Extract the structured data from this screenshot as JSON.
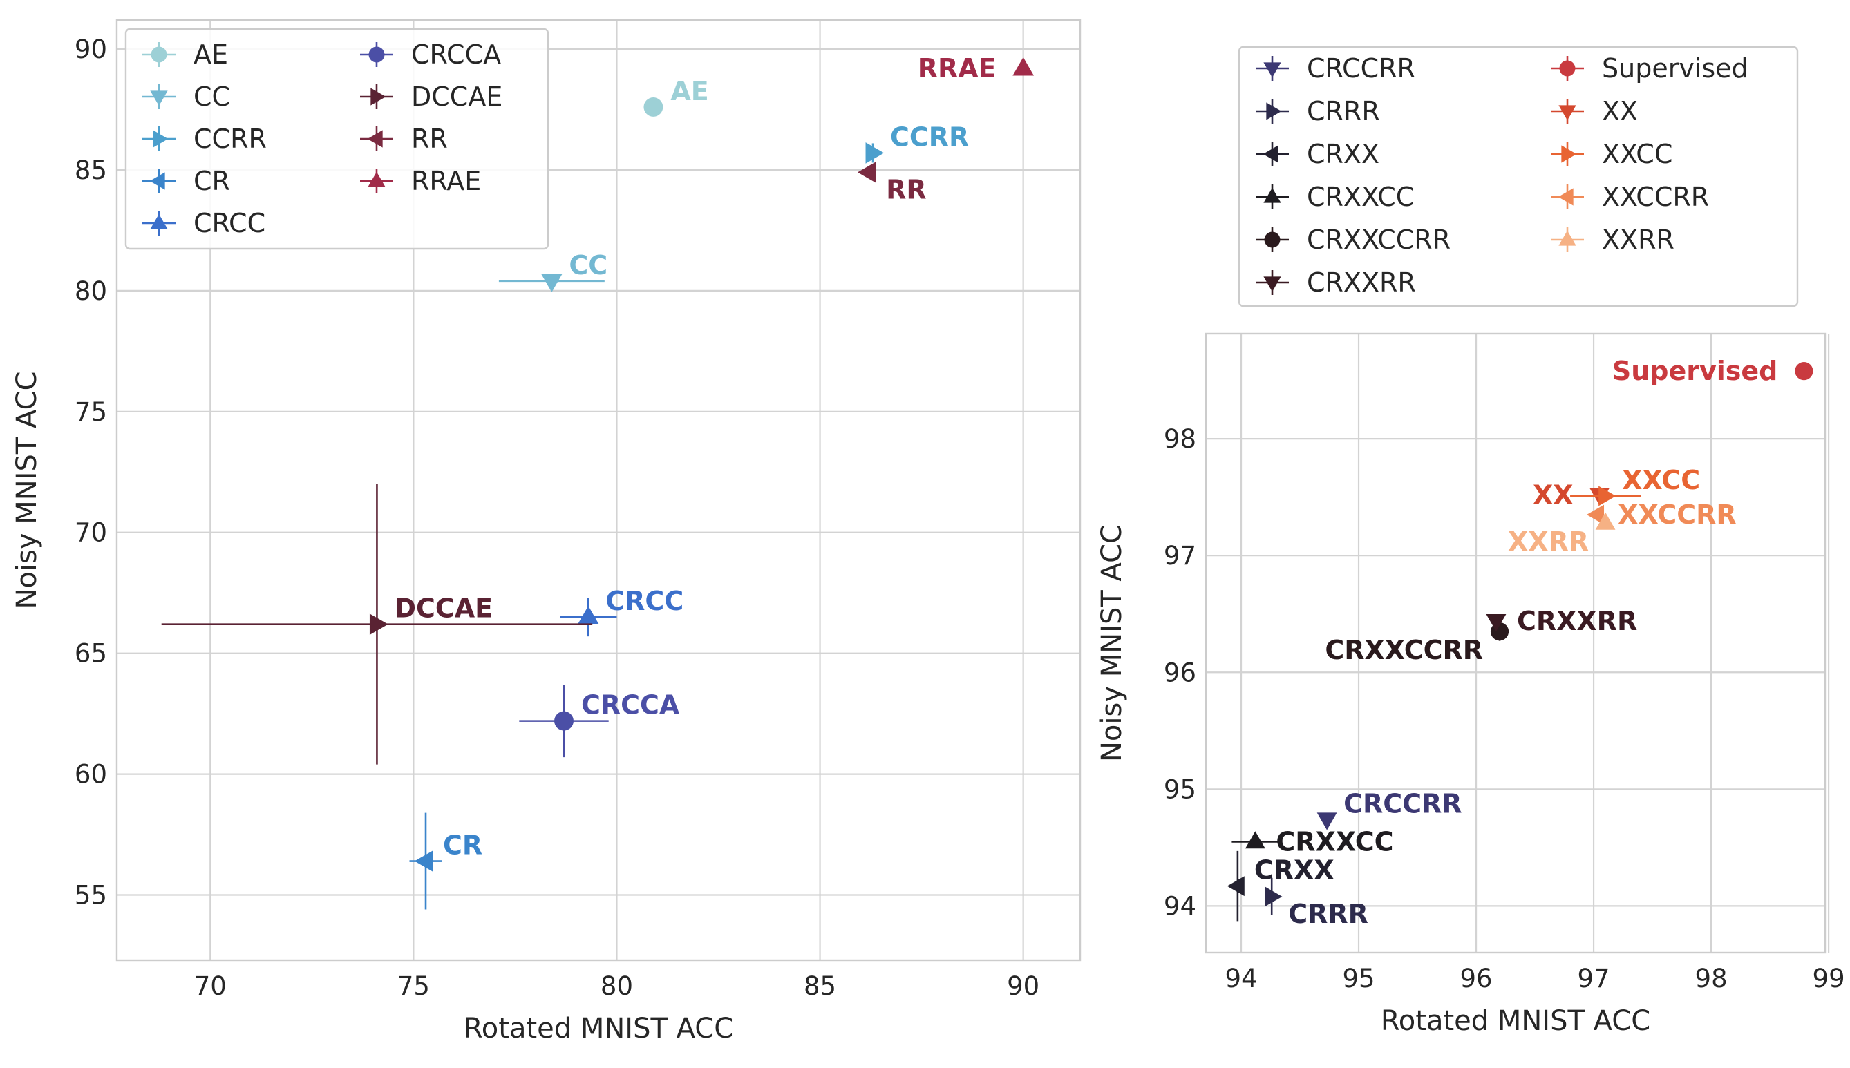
{
  "chart_data": [
    {
      "type": "scatter",
      "title": "",
      "xlabel": "Rotated MNIST ACC",
      "ylabel": "Noisy MNIST ACC",
      "xlim": [
        67.7,
        91.4
      ],
      "ylim": [
        52.3,
        91.2
      ],
      "xticks": [
        70,
        75,
        80,
        85,
        90
      ],
      "yticks": [
        55,
        60,
        65,
        70,
        75,
        80,
        85,
        90
      ],
      "grid": true,
      "legend_position": "top-left",
      "legend_columns": 2,
      "series": [
        {
          "name": "AE",
          "marker": "circle",
          "color": "#9dd0d6",
          "x": 80.9,
          "y": 87.6,
          "label": "AE",
          "label_pos": "upper-right"
        },
        {
          "name": "CC",
          "marker": "triangle-down",
          "color": "#73b8d2",
          "x": 78.4,
          "y": 80.4,
          "xerr": 1.3,
          "label": "CC",
          "label_pos": "upper-right"
        },
        {
          "name": "CCRR",
          "marker": "triangle-right",
          "color": "#4b9fcd",
          "x": 86.3,
          "y": 85.7,
          "yerr": 0.4,
          "label": "CCRR",
          "label_pos": "upper-right"
        },
        {
          "name": "CR",
          "marker": "triangle-left",
          "color": "#3a84cb",
          "x": 75.3,
          "y": 56.4,
          "xerr": 0.4,
          "yerr": 2.0,
          "label": "CR",
          "label_pos": "upper-right"
        },
        {
          "name": "CRCC",
          "marker": "triangle-up",
          "color": "#3b6fcb",
          "x": 79.3,
          "y": 66.5,
          "xerr": 0.7,
          "yerr": 0.8,
          "label": "CRCC",
          "label_pos": "upper-right"
        },
        {
          "name": "CRCCA",
          "marker": "circle",
          "color": "#4b4fa6",
          "x": 78.7,
          "y": 62.2,
          "xerr": 1.1,
          "yerr": 1.5,
          "label": "CRCCA",
          "label_pos": "upper-right"
        },
        {
          "name": "DCCAE",
          "marker": "triangle-right",
          "color": "#5a2233",
          "x": 74.1,
          "y": 66.2,
          "xerr": 5.3,
          "yerr": 5.8,
          "label": "DCCAE",
          "label_pos": "upper-right"
        },
        {
          "name": "RR",
          "marker": "triangle-left",
          "color": "#7a2a40",
          "x": 86.2,
          "y": 84.9,
          "label": "RR",
          "label_pos": "lower-right"
        },
        {
          "name": "RRAE",
          "marker": "triangle-up",
          "color": "#a12b49",
          "x": 90.0,
          "y": 89.2,
          "label": "RRAE",
          "label_pos": "left"
        }
      ]
    },
    {
      "type": "scatter",
      "title": "",
      "xlabel": "Rotated MNIST ACC",
      "ylabel": "Noisy MNIST ACC",
      "xlim": [
        93.7,
        98.97
      ],
      "ylim": [
        93.6,
        98.9
      ],
      "xticks": [
        94,
        95,
        96,
        97,
        98,
        99
      ],
      "yticks": [
        94,
        95,
        96,
        97,
        98
      ],
      "grid": true,
      "legend_position": "above",
      "legend_columns": 2,
      "series": [
        {
          "name": "CRCCRR",
          "marker": "triangle-down",
          "color": "#3c3873",
          "x": 94.73,
          "y": 94.74,
          "label": "CRCCRR",
          "label_pos": "upper-right"
        },
        {
          "name": "CRRR",
          "marker": "triangle-right",
          "color": "#2d2b4c",
          "x": 94.26,
          "y": 94.08,
          "yerr": 0.16,
          "label": "CRRR",
          "label_pos": "lower-right"
        },
        {
          "name": "CRXX",
          "marker": "triangle-left",
          "color": "#23212f",
          "x": 93.97,
          "y": 94.17,
          "yerr": 0.3,
          "label": "CRXX",
          "label_pos": "upper-right"
        },
        {
          "name": "CRXXCC",
          "marker": "triangle-up",
          "color": "#1e1c20",
          "x": 94.12,
          "y": 94.55,
          "xerr": 0.2,
          "label": "CRXXCC",
          "label_pos": "right"
        },
        {
          "name": "CRXXCCRR",
          "marker": "circle",
          "color": "#2a1a1d",
          "x": 96.2,
          "y": 96.35,
          "yerr": 0.08,
          "label": "CRXXCCRR",
          "label_pos": "lower-left"
        },
        {
          "name": "CRXXRR",
          "marker": "triangle-down",
          "color": "#3a1a22",
          "x": 96.17,
          "y": 96.44,
          "label": "CRXXRR",
          "label_pos": "right"
        },
        {
          "name": "Supervised",
          "marker": "circle",
          "color": "#c93a3f",
          "x": 98.79,
          "y": 98.58,
          "label": "Supervised",
          "label_pos": "left"
        },
        {
          "name": "XX",
          "marker": "triangle-down",
          "color": "#d4482e",
          "x": 97.05,
          "y": 97.52,
          "label": "XX",
          "label_pos": "left"
        },
        {
          "name": "XXCC",
          "marker": "triangle-right",
          "color": "#e86432",
          "x": 97.1,
          "y": 97.51,
          "xerr": 0.3,
          "label": "XXCC",
          "label_pos": "upper-right"
        },
        {
          "name": "XXCCRR",
          "marker": "triangle-left",
          "color": "#f08a57",
          "x": 97.03,
          "y": 97.35,
          "label": "XXCCRR",
          "label_pos": "right"
        },
        {
          "name": "XXRR",
          "marker": "triangle-up",
          "color": "#f6b184",
          "x": 97.1,
          "y": 97.28,
          "label": "XXRR",
          "label_pos": "lower-left"
        }
      ]
    }
  ]
}
